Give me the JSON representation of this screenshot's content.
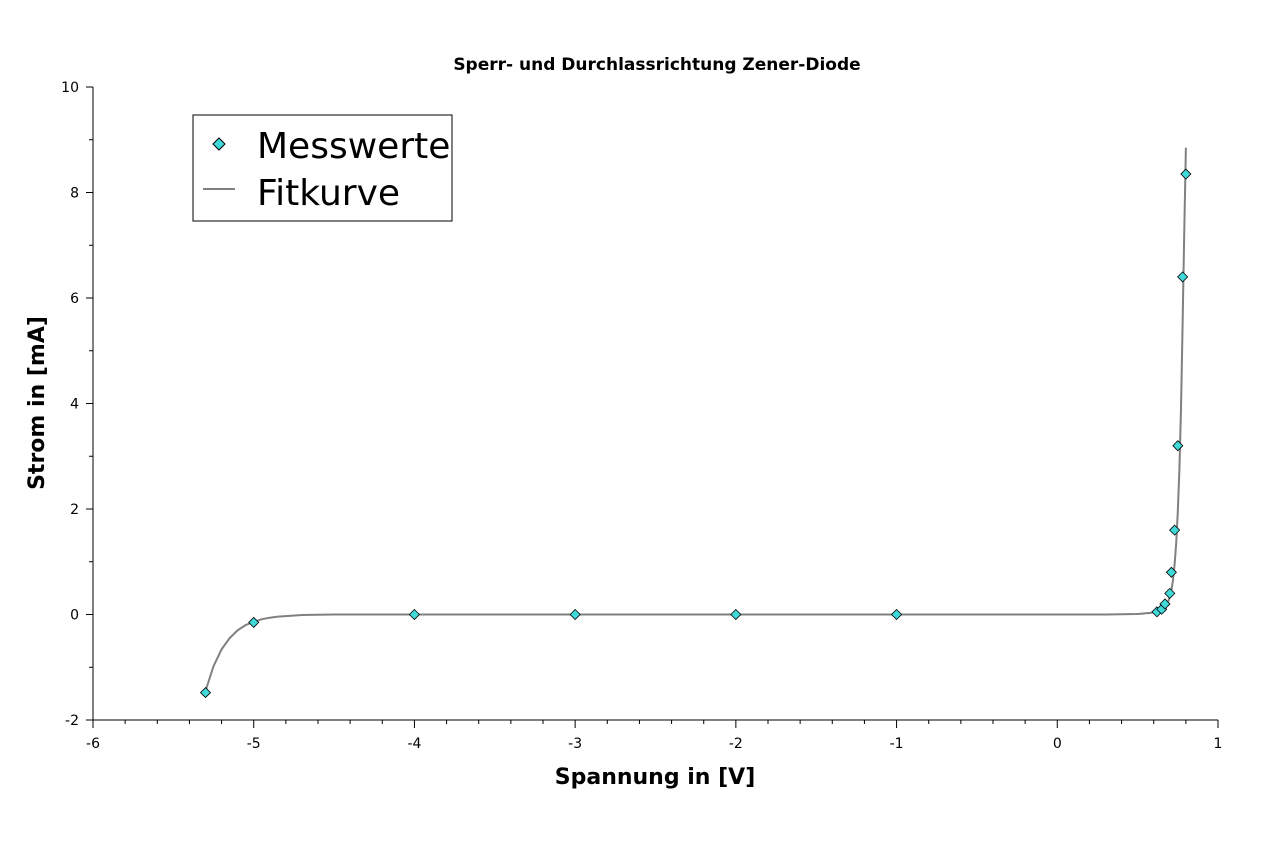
{
  "chart_data": {
    "type": "scatter",
    "title": "Sperr- und Durchlassrichtung Zener-Diode",
    "xlabel": "Spannung in [V]",
    "ylabel": "Strom in [mA]",
    "xlim": [
      -6,
      1
    ],
    "ylim": [
      -2,
      10
    ],
    "xticks": [
      -6,
      -5,
      -4,
      -3,
      -2,
      -1,
      0,
      1
    ],
    "yticks": [
      -2,
      0,
      2,
      4,
      6,
      8,
      10
    ],
    "xtick_labels": [
      "-6",
      "-5",
      "-4",
      "-3",
      "-2",
      "-1",
      "0",
      "1"
    ],
    "ytick_labels": [
      "-2",
      "0",
      "2",
      "4",
      "6",
      "8",
      "10"
    ],
    "grid": false,
    "legend_position": "top-left",
    "series": [
      {
        "name": "Messwerte",
        "kind": "markers",
        "marker": "diamond",
        "color": "#40d8d8",
        "x": [
          -5.3,
          -5.0,
          -4.0,
          -3.0,
          -2.0,
          -1.0,
          0.62,
          0.65,
          0.67,
          0.7,
          0.71,
          0.73,
          0.75,
          0.78,
          0.8
        ],
        "y": [
          -1.48,
          -0.15,
          0.0,
          0.0,
          0.0,
          0.0,
          0.05,
          0.1,
          0.2,
          0.4,
          0.8,
          1.6,
          3.2,
          6.4,
          8.35
        ]
      },
      {
        "name": "Fitkurve",
        "kind": "line",
        "color": "#808080",
        "x": [
          -5.3,
          -5.25,
          -5.2,
          -5.15,
          -5.1,
          -5.05,
          -5.0,
          -4.95,
          -4.9,
          -4.85,
          -4.8,
          -4.7,
          -4.6,
          -4.5,
          -4.0,
          -3.0,
          -2.0,
          -1.0,
          0.0,
          0.3,
          0.5,
          0.58,
          0.62,
          0.65,
          0.67,
          0.69,
          0.7,
          0.71,
          0.72,
          0.73,
          0.74,
          0.75,
          0.76,
          0.77,
          0.78,
          0.79,
          0.8
        ],
        "y": [
          -1.45,
          -0.98,
          -0.66,
          -0.45,
          -0.3,
          -0.2,
          -0.14,
          -0.09,
          -0.06,
          -0.04,
          -0.03,
          -0.01,
          -0.005,
          0.0,
          0.0,
          0.0,
          0.0,
          0.0,
          0.0,
          0.0,
          0.01,
          0.03,
          0.06,
          0.11,
          0.16,
          0.25,
          0.33,
          0.46,
          0.65,
          0.95,
          1.35,
          1.95,
          2.75,
          3.9,
          5.5,
          7.3,
          8.85
        ]
      }
    ]
  },
  "legend": {
    "items": [
      {
        "label": "Messwerte"
      },
      {
        "label": "Fitkurve"
      }
    ]
  }
}
